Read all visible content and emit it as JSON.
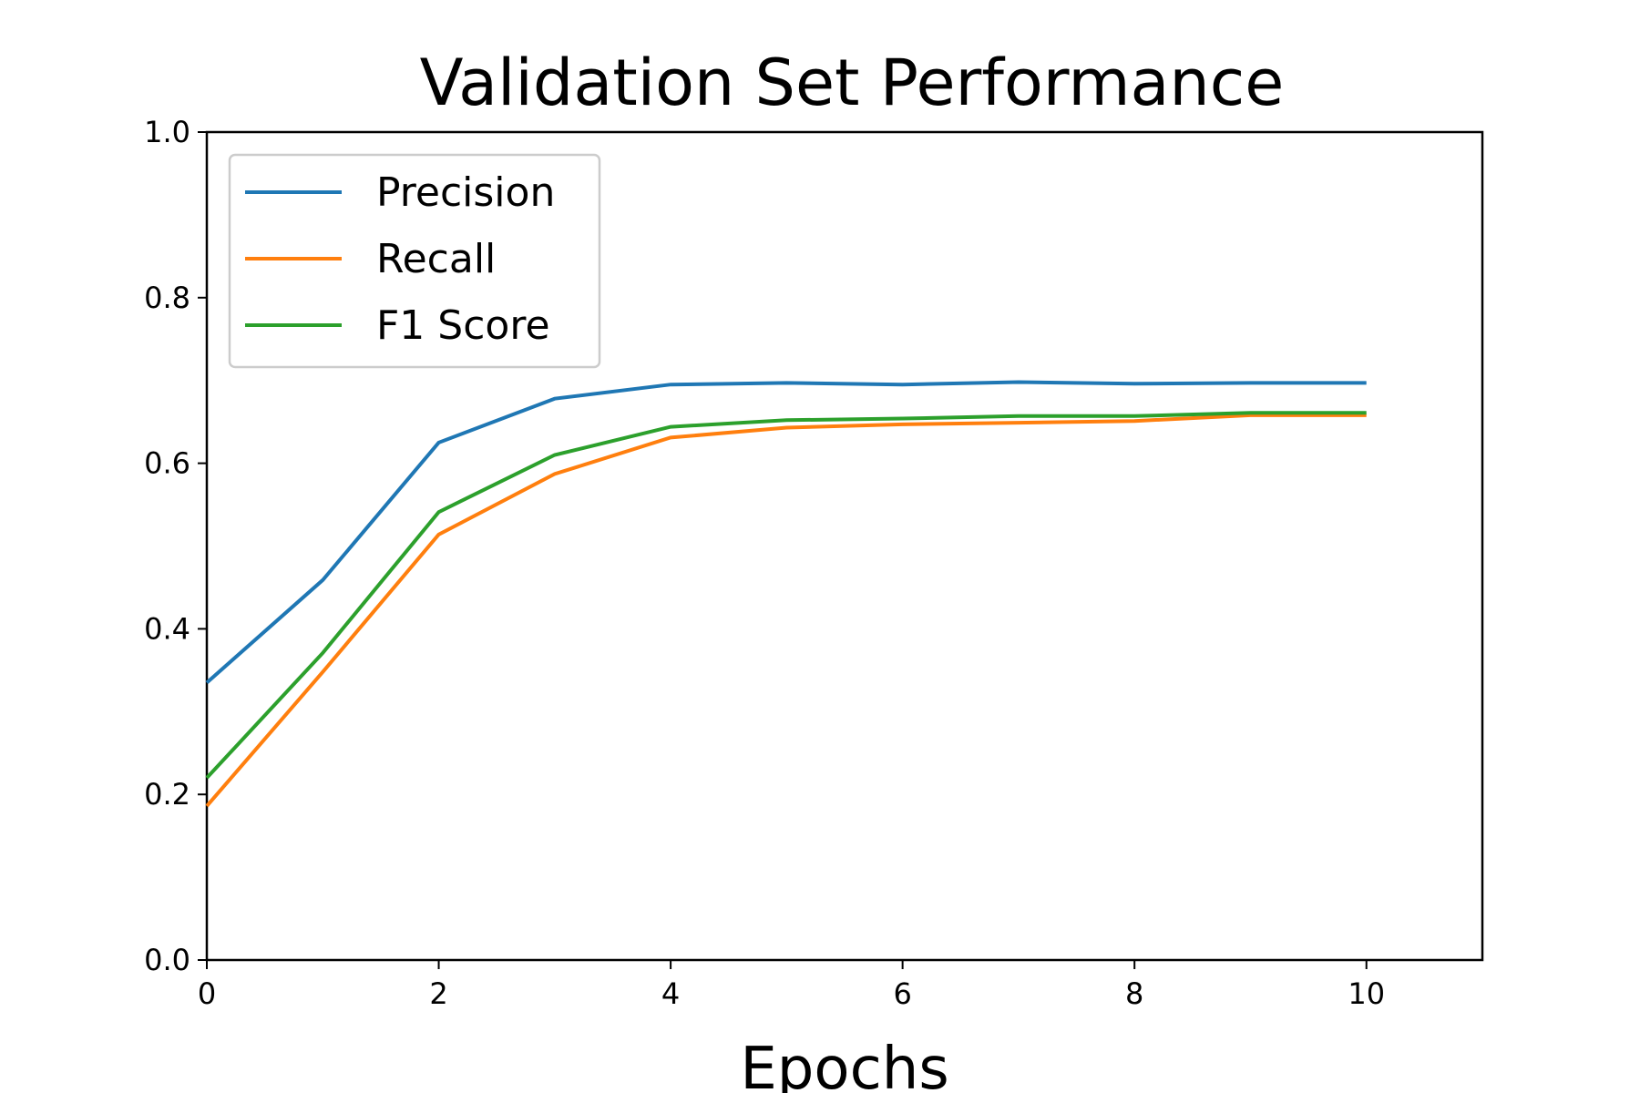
{
  "chart_data": {
    "type": "line",
    "title": "Validation Set Performance",
    "xlabel": "Epochs",
    "ylabel": "",
    "xlim": [
      0,
      11
    ],
    "ylim": [
      0.0,
      1.0
    ],
    "xticks": [
      0,
      2,
      4,
      6,
      8,
      10
    ],
    "xtick_labels": [
      "0",
      "2",
      "4",
      "6",
      "8",
      "10"
    ],
    "yticks": [
      0.0,
      0.2,
      0.4,
      0.6,
      0.8,
      1.0
    ],
    "ytick_labels": [
      "0.0",
      "0.2",
      "0.4",
      "0.6",
      "0.8",
      "1.0"
    ],
    "grid": false,
    "legend_position": "top-left",
    "x": [
      0,
      1,
      2,
      3,
      4,
      5,
      6,
      7,
      8,
      9,
      10
    ],
    "series": [
      {
        "name": "Precision",
        "color": "#1f77b4",
        "values": [
          0.335,
          0.459,
          0.625,
          0.678,
          0.695,
          0.697,
          0.695,
          0.698,
          0.696,
          0.697,
          0.697
        ]
      },
      {
        "name": "Recall",
        "color": "#ff7f0e",
        "values": [
          0.186,
          0.348,
          0.514,
          0.587,
          0.631,
          0.643,
          0.647,
          0.649,
          0.651,
          0.658,
          0.658
        ]
      },
      {
        "name": "F1 Score",
        "color": "#2ca02c",
        "values": [
          0.22,
          0.371,
          0.541,
          0.61,
          0.644,
          0.652,
          0.654,
          0.657,
          0.657,
          0.661,
          0.661
        ]
      }
    ]
  }
}
